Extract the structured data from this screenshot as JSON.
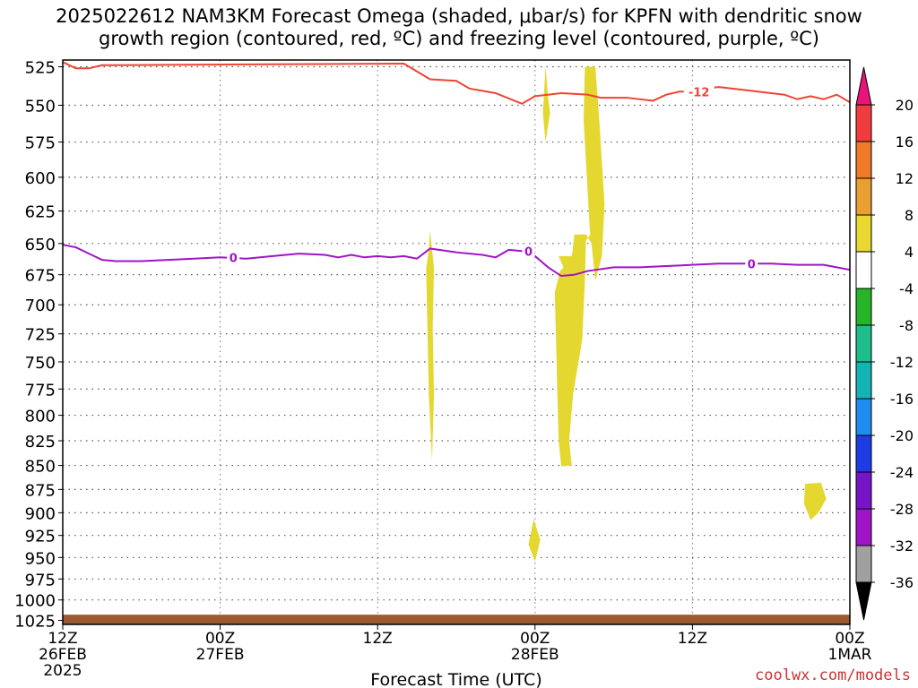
{
  "title": {
    "line1": "2025022612 NAM3KM Forecast Omega (shaded, μbar/s) for KPFN with dendritic snow",
    "line2": "growth region (contoured, red, ºC) and freezing level (contoured, purple, ºC)"
  },
  "credit": "coolwx.com/models",
  "chart_data": {
    "type": "time-height cross section",
    "xlabel": "Forecast Time (UTC)",
    "x_ticks": [
      {
        "hour": 0,
        "lines": [
          "12Z",
          "26FEB",
          "2025"
        ]
      },
      {
        "hour": 12,
        "lines": [
          "00Z",
          "27FEB"
        ]
      },
      {
        "hour": 24,
        "lines": [
          "12Z"
        ]
      },
      {
        "hour": 36,
        "lines": [
          "00Z",
          "28FEB"
        ]
      },
      {
        "hour": 48,
        "lines": [
          "12Z"
        ]
      },
      {
        "hour": 60,
        "lines": [
          "00Z",
          "1MAR"
        ]
      }
    ],
    "x_range_hours": [
      0,
      60
    ],
    "ylabel": "",
    "y_axis": "pressure (mb)",
    "y_ticks": [
      525,
      550,
      575,
      600,
      625,
      650,
      675,
      700,
      725,
      750,
      775,
      800,
      825,
      850,
      875,
      900,
      925,
      950,
      975,
      1000,
      1025
    ],
    "y_range": [
      525,
      1025
    ],
    "y_scale": "log-pressure",
    "grid": true,
    "colorbar": {
      "labels": [
        "20",
        "16",
        "12",
        "8",
        "4",
        "-4",
        "-8",
        "-12",
        "-16",
        "-20",
        "-24",
        "-28",
        "-32",
        "-36"
      ],
      "colors": [
        "#e8147a",
        "#f03c3c",
        "#f07a28",
        "#e8a030",
        "#e8d830",
        "#ffffff",
        "#28b428",
        "#1ebe8c",
        "#14b4b4",
        "#1e8cf0",
        "#1e3ce6",
        "#7814c8",
        "#a014c8",
        "#a0a0a0",
        "#000000"
      ]
    },
    "series": [
      {
        "name": "-12",
        "color": "#ee4433",
        "points": [
          [
            0,
            522
          ],
          [
            1,
            526
          ],
          [
            2,
            526
          ],
          [
            3,
            524
          ],
          [
            26,
            523
          ],
          [
            28,
            533
          ],
          [
            30,
            534
          ],
          [
            31,
            539
          ],
          [
            33,
            542
          ],
          [
            35,
            549
          ],
          [
            36,
            544
          ],
          [
            38,
            542
          ],
          [
            40,
            543
          ],
          [
            41,
            545
          ],
          [
            43,
            545
          ],
          [
            45,
            547
          ],
          [
            46,
            543
          ],
          [
            47,
            541
          ],
          [
            48,
            541
          ],
          [
            49,
            539
          ],
          [
            50,
            538
          ],
          [
            52,
            540
          ],
          [
            54,
            542
          ],
          [
            55,
            543
          ],
          [
            56,
            546
          ],
          [
            57,
            544
          ],
          [
            58,
            546
          ],
          [
            59,
            543
          ],
          [
            60,
            548
          ]
        ]
      },
      {
        "name": "0",
        "color": "#a014c8",
        "points": [
          [
            0,
            651
          ],
          [
            1,
            653
          ],
          [
            2,
            658
          ],
          [
            3,
            663
          ],
          [
            4,
            664
          ],
          [
            6,
            664
          ],
          [
            8,
            663
          ],
          [
            10,
            662
          ],
          [
            12,
            661
          ],
          [
            14,
            662
          ],
          [
            16,
            660
          ],
          [
            18,
            658
          ],
          [
            20,
            659
          ],
          [
            21,
            661
          ],
          [
            22,
            659
          ],
          [
            23,
            661
          ],
          [
            24,
            660
          ],
          [
            25,
            661
          ],
          [
            26,
            660
          ],
          [
            27,
            662
          ],
          [
            28,
            654
          ],
          [
            30,
            657
          ],
          [
            32,
            659
          ],
          [
            33,
            661
          ],
          [
            34,
            655
          ],
          [
            35,
            656
          ],
          [
            36,
            660
          ],
          [
            37,
            669
          ],
          [
            38,
            676
          ],
          [
            39,
            675
          ],
          [
            40,
            672
          ],
          [
            42,
            669
          ],
          [
            44,
            669
          ],
          [
            46,
            668
          ],
          [
            48,
            667
          ],
          [
            50,
            666
          ],
          [
            52,
            666
          ],
          [
            54,
            666
          ],
          [
            56,
            667
          ],
          [
            58,
            667
          ],
          [
            60,
            671
          ]
        ]
      }
    ],
    "shaded_regions": [
      {
        "value_range": [
          4,
          8
        ],
        "color": "#e4d830",
        "points": [
          [
            28.0,
            640
          ],
          [
            28.3,
            670
          ],
          [
            28.2,
            720
          ],
          [
            28.3,
            780
          ],
          [
            28.15,
            845
          ],
          [
            27.9,
            780
          ],
          [
            27.8,
            720
          ],
          [
            27.7,
            670
          ],
          [
            27.9,
            655
          ]
        ]
      },
      {
        "value_range": [
          4,
          8
        ],
        "color": "#e4d830",
        "points": [
          [
            36.8,
            525
          ],
          [
            37.0,
            545
          ],
          [
            37.15,
            555
          ],
          [
            36.8,
            575
          ],
          [
            36.6,
            555
          ],
          [
            36.7,
            540
          ]
        ]
      },
      {
        "value_range": [
          4,
          8
        ],
        "color": "#e4d830",
        "points": [
          [
            39.8,
            525
          ],
          [
            40.6,
            525
          ],
          [
            40.9,
            560
          ],
          [
            41.3,
            620
          ],
          [
            41.1,
            660
          ],
          [
            40.6,
            680
          ],
          [
            40.3,
            650
          ],
          [
            39.9,
            643
          ],
          [
            39.0,
            643
          ],
          [
            38.6,
            680
          ],
          [
            37.8,
            660
          ],
          [
            39.1,
            660
          ],
          [
            40.2,
            643
          ],
          [
            39.7,
            560
          ]
        ]
      },
      {
        "value_range": [
          4,
          8
        ],
        "color": "#e4d830",
        "points": [
          [
            39.4,
            643
          ],
          [
            39.9,
            643
          ],
          [
            39.8,
            680
          ],
          [
            39.6,
            730
          ],
          [
            38.9,
            780
          ],
          [
            38.6,
            825
          ],
          [
            38.8,
            850
          ],
          [
            38.0,
            851
          ],
          [
            37.8,
            825
          ],
          [
            37.7,
            780
          ],
          [
            37.6,
            730
          ],
          [
            37.5,
            690
          ],
          [
            37.9,
            672
          ],
          [
            38.6,
            665
          ]
        ]
      },
      {
        "value_range": [
          4,
          8
        ],
        "color": "#e4d830",
        "points": [
          [
            35.9,
            907
          ],
          [
            36.4,
            930
          ],
          [
            36.0,
            955
          ],
          [
            35.5,
            935
          ]
        ]
      },
      {
        "value_range": [
          4,
          8
        ],
        "color": "#e4d830",
        "points": [
          [
            56.6,
            869
          ],
          [
            57.8,
            868
          ],
          [
            58.2,
            885
          ],
          [
            57.6,
            900
          ],
          [
            57.0,
            908
          ],
          [
            56.5,
            890
          ]
        ]
      }
    ],
    "terrain": {
      "color": "#9c5a32",
      "top_mb": 1018,
      "bottom_mb": 1027
    }
  }
}
